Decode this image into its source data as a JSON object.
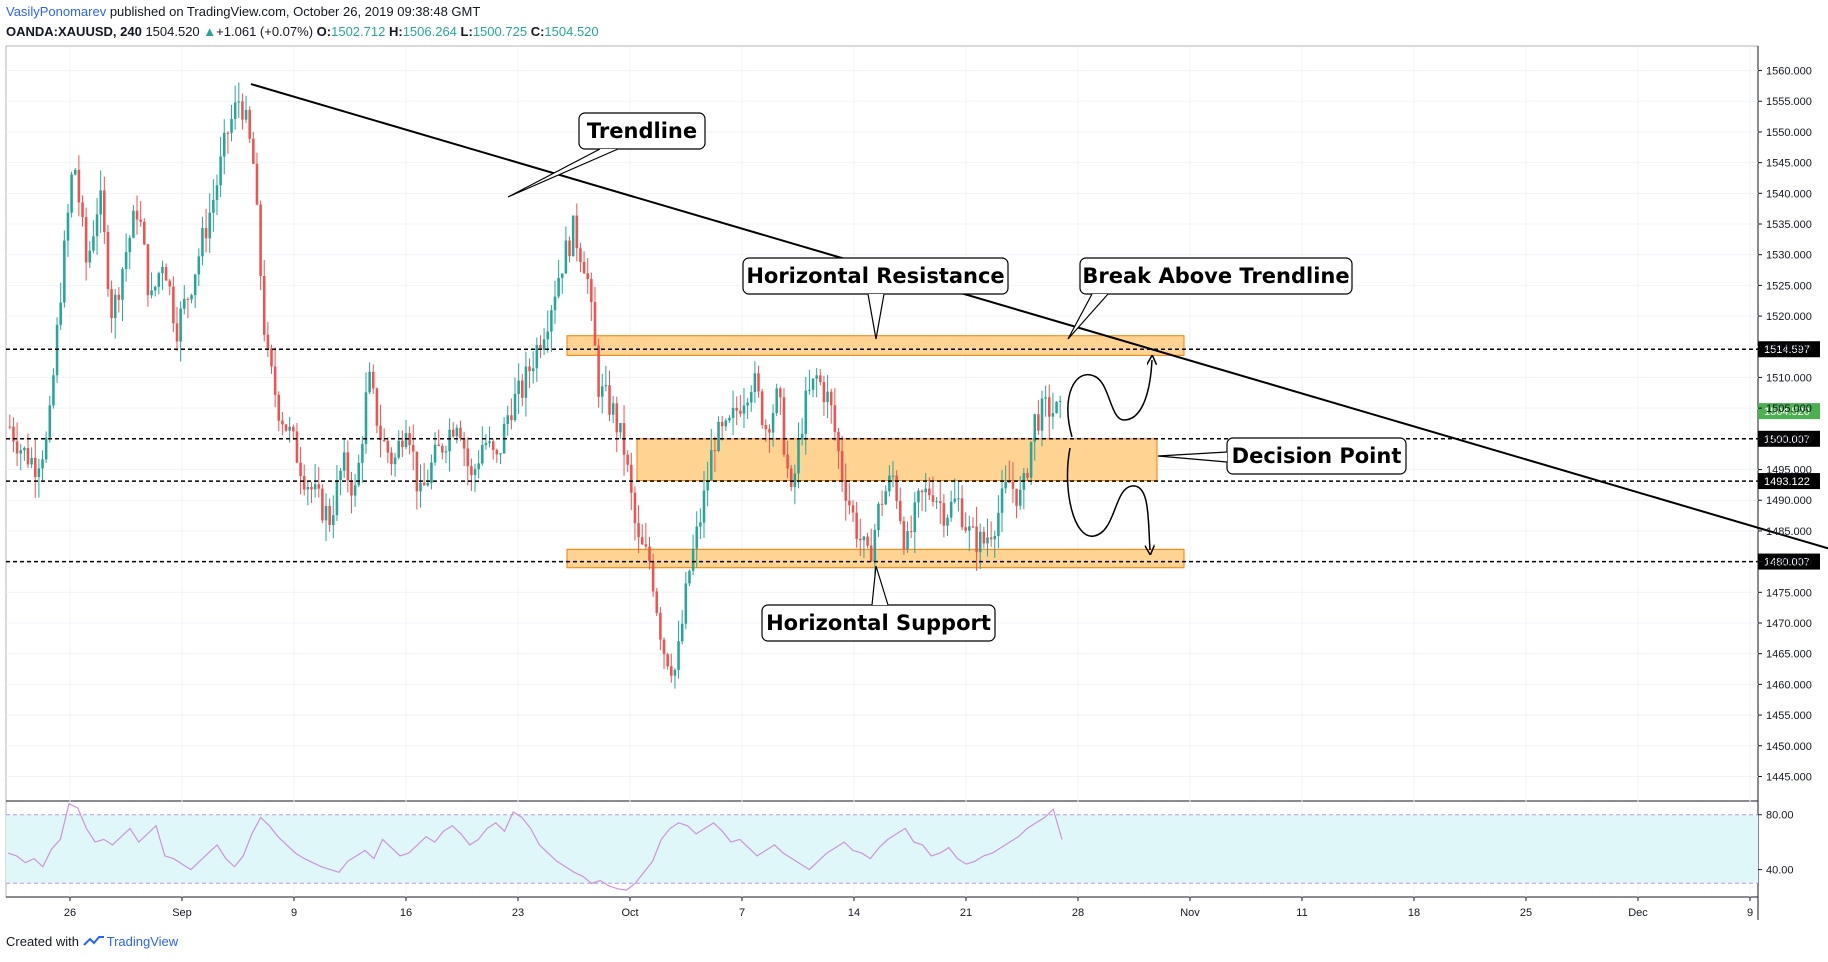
{
  "header": {
    "author": "VasilyPonomarev",
    "published": "published on TradingView.com, October 26, 2019 09:38:48 GMT",
    "symbol": "OANDA:XAUUSD, 240",
    "last": "1504.520",
    "change": "+1.061 (+0.07%)",
    "o_label": "O:",
    "o_value": "1502.712",
    "h_label": "H:",
    "h_value": "1506.264",
    "l_label": "L:",
    "l_value": "1500.725",
    "c_label": "C:",
    "c_value": "1504.520"
  },
  "footer": {
    "created_with": "Created with",
    "brand": "TradingView"
  },
  "colors": {
    "bull": "#26a69a",
    "bear": "#ef5350",
    "zone_fill": "#ffcc80",
    "zone_stroke": "#f57c00",
    "rsi_band": "#e0f7fa",
    "rsi_line": "#ce93d8",
    "last_price_bg": "#4caf50"
  },
  "chart_data": {
    "type": "candlestick",
    "instrument": "OANDA:XAUUSD",
    "timeframe": "240",
    "ylim": [
      1441,
      1564
    ],
    "x_ticks": [
      "26",
      "Sep",
      "9",
      "16",
      "23",
      "Oct",
      "7",
      "14",
      "21",
      "28",
      "Nov",
      "11",
      "18",
      "25",
      "Dec",
      "9"
    ],
    "y_ticks": [
      "1560.000",
      "1555.000",
      "1550.000",
      "1545.000",
      "1540.000",
      "1535.000",
      "1530.000",
      "1525.000",
      "1520.000",
      "1515.000",
      "1510.000",
      "1505.000",
      "1500.000",
      "1495.000",
      "1490.000",
      "1485.000",
      "1480.000",
      "1475.000",
      "1470.000",
      "1465.000",
      "1460.000",
      "1455.000",
      "1450.000",
      "1445.000"
    ],
    "y_tick_values": [
      1560,
      1555,
      1550,
      1545,
      1540,
      1535,
      1530,
      1525,
      1520,
      1515,
      1510,
      1505,
      1500,
      1495,
      1490,
      1485,
      1480,
      1475,
      1470,
      1465,
      1460,
      1455,
      1450,
      1445
    ],
    "price_path": [
      1502,
      1498,
      1496,
      1500,
      1525,
      1546,
      1528,
      1540,
      1520,
      1530,
      1538,
      1522,
      1530,
      1518,
      1524,
      1532,
      1540,
      1550,
      1556,
      1545,
      1514,
      1505,
      1500,
      1494,
      1490,
      1487,
      1496,
      1491,
      1510,
      1500,
      1496,
      1504,
      1490,
      1496,
      1500,
      1504,
      1493,
      1500,
      1496,
      1505,
      1508,
      1514,
      1520,
      1528,
      1534,
      1528,
      1508,
      1505,
      1498,
      1483,
      1480,
      1466,
      1462,
      1478,
      1488,
      1500,
      1501,
      1506,
      1510,
      1502,
      1507,
      1490,
      1505,
      1510,
      1506,
      1494,
      1486,
      1480,
      1490,
      1494,
      1482,
      1490,
      1492,
      1488,
      1490,
      1484,
      1483,
      1487,
      1493,
      1490,
      1503,
      1505,
      1504
    ],
    "horizontal_levels": [
      {
        "label": "1514.597",
        "value": 1514.597
      },
      {
        "label": "1500.007",
        "value": 1500.007
      },
      {
        "label": "1493.122",
        "value": 1493.122
      },
      {
        "label": "1480.007",
        "value": 1480.007
      }
    ],
    "last_price": {
      "label": "1504.520",
      "value": 1504.52
    },
    "zones": [
      {
        "name": "resistance",
        "low": 1513.6,
        "high": 1516.8
      },
      {
        "name": "decision",
        "low": 1493.2,
        "high": 1500.0
      },
      {
        "name": "support",
        "low": 1479.0,
        "high": 1482.0
      }
    ],
    "trendline": {
      "from": [
        1,
        1557.8
      ],
      "to": [
        59,
        1476.6
      ]
    },
    "annotations": [
      {
        "text": "Trendline"
      },
      {
        "text": "Horizontal Resistance"
      },
      {
        "text": "Break Above Trendline"
      },
      {
        "text": "Decision Point"
      },
      {
        "text": "Horizontal Support"
      }
    ],
    "rsi": {
      "ylim": [
        20,
        90
      ],
      "ticks": [
        "80.00",
        "40.00"
      ],
      "tick_values": [
        80,
        40
      ],
      "band": [
        30,
        80
      ],
      "values": [
        52,
        50,
        45,
        48,
        42,
        55,
        62,
        88,
        85,
        70,
        60,
        62,
        58,
        64,
        70,
        60,
        66,
        72,
        50,
        48,
        44,
        40,
        46,
        52,
        58,
        48,
        42,
        50,
        66,
        78,
        72,
        64,
        58,
        52,
        48,
        45,
        42,
        40,
        38,
        46,
        50,
        54,
        48,
        62,
        56,
        50,
        52,
        58,
        64,
        60,
        68,
        72,
        66,
        58,
        62,
        70,
        74,
        68,
        82,
        78,
        70,
        58,
        52,
        46,
        42,
        38,
        35,
        30,
        32,
        28,
        26,
        25,
        30,
        38,
        46,
        62,
        70,
        74,
        72,
        66,
        70,
        74,
        68,
        60,
        62,
        56,
        50,
        54,
        58,
        52,
        48,
        44,
        40,
        46,
        52,
        56,
        60,
        54,
        52,
        48,
        56,
        62,
        66,
        70,
        60,
        58,
        50,
        52,
        56,
        48,
        44,
        46,
        50,
        52,
        56,
        60,
        64,
        70,
        74,
        78,
        84,
        62
      ]
    }
  }
}
